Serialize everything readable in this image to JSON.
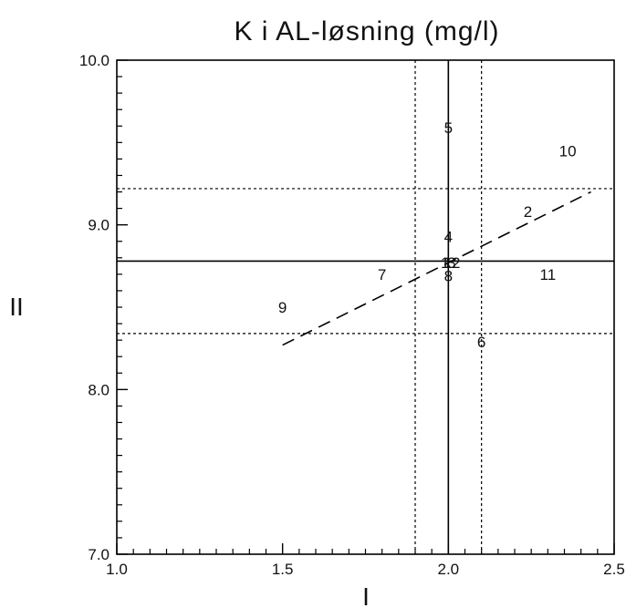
{
  "chart_data": {
    "type": "scatter",
    "title": "K i AL-løsning (mg/l)",
    "xlabel": "I",
    "ylabel": "II",
    "xlim": [
      1.0,
      2.5
    ],
    "ylim": [
      7.0,
      10.0
    ],
    "x_ticks": [
      "1.0",
      "1.5",
      "2.0",
      "2.5"
    ],
    "y_ticks": [
      "7.0",
      "8.0",
      "9.0",
      "10.0"
    ],
    "x_minor_step": 0.05,
    "y_minor_step": 0.1,
    "grid": false,
    "points": [
      {
        "label": "1",
        "x": 1.99,
        "y": 8.77
      },
      {
        "label": "2",
        "x": 2.24,
        "y": 9.08
      },
      {
        "label": "3",
        "x": 2.01,
        "y": 8.77
      },
      {
        "label": "4",
        "x": 2.0,
        "y": 8.93
      },
      {
        "label": "5",
        "x": 2.0,
        "y": 9.59
      },
      {
        "label": "6",
        "x": 2.1,
        "y": 8.29
      },
      {
        "label": "7",
        "x": 1.8,
        "y": 8.7
      },
      {
        "label": "8",
        "x": 2.0,
        "y": 8.69
      },
      {
        "label": "9",
        "x": 1.5,
        "y": 8.5
      },
      {
        "label": "10",
        "x": 2.36,
        "y": 9.45
      },
      {
        "label": "11",
        "x": 2.3,
        "y": 8.7
      },
      {
        "label": "12",
        "x": 2.01,
        "y": 8.77
      }
    ],
    "reference_lines": [
      {
        "orientation": "vertical",
        "value": 2.0,
        "style": "solid"
      },
      {
        "orientation": "vertical",
        "value": 1.9,
        "style": "dotted"
      },
      {
        "orientation": "vertical",
        "value": 2.1,
        "style": "dotted"
      },
      {
        "orientation": "horizontal",
        "value": 8.78,
        "style": "solid"
      },
      {
        "orientation": "horizontal",
        "value": 9.22,
        "style": "dotted"
      },
      {
        "orientation": "horizontal",
        "value": 8.34,
        "style": "dotted"
      }
    ],
    "regression_line": {
      "x": [
        1.5,
        2.43
      ],
      "y": [
        8.27,
        9.2
      ],
      "style": "dashed"
    }
  }
}
